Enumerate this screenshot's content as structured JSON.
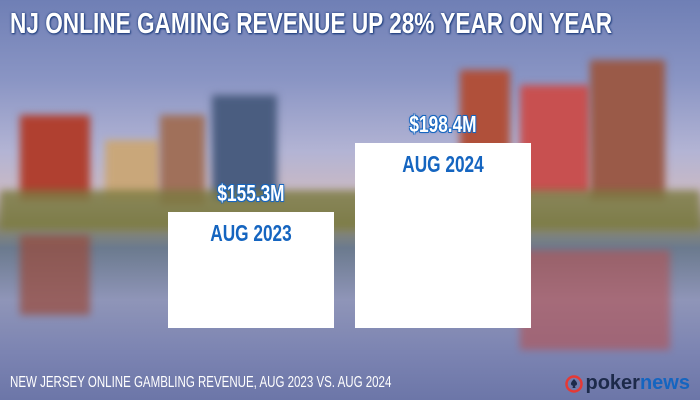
{
  "title": "NJ ONLINE GAMING REVENUE UP 28% YEAR ON YEAR",
  "footer": "NEW JERSEY ONLINE GAMBLING REVENUE, AUG 2023 VS. AUG 2024",
  "logo": {
    "part1": "poker",
    "part2": "news"
  },
  "colors": {
    "accent": "#1565c0",
    "bar": "#ffffff",
    "logo_dark": "#1d2a4a",
    "logo_red": "#e53935"
  },
  "chart_data": {
    "type": "bar",
    "title": "NJ ONLINE GAMING REVENUE UP 28% YEAR ON YEAR",
    "categories": [
      "AUG 2023",
      "AUG 2024"
    ],
    "values": [
      155.3,
      198.4
    ],
    "data_labels": [
      "$155.3M",
      "$198.4M"
    ],
    "grid": false
  }
}
